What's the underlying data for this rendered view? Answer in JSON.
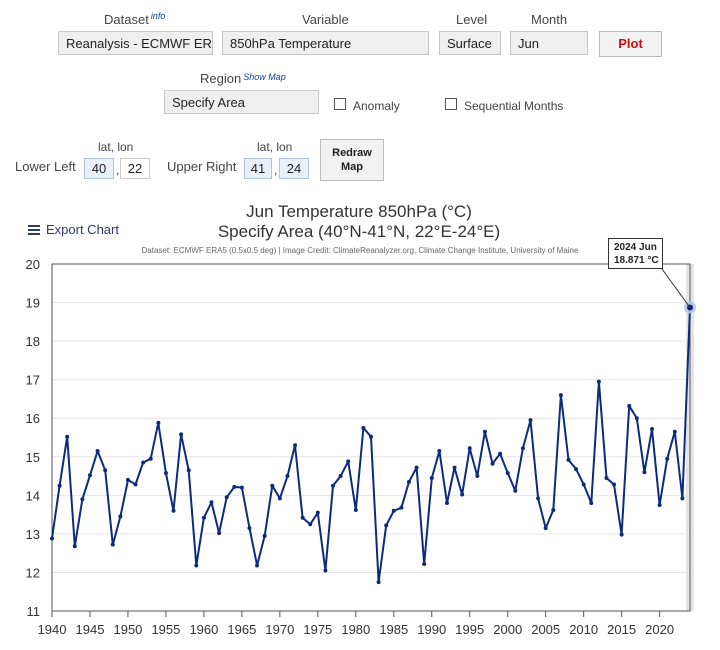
{
  "controls": {
    "dataset_label": "Dataset",
    "dataset_info": "info",
    "dataset_value": "Reanalysis - ECMWF ER",
    "variable_label": "Variable",
    "variable_value": "850hPa Temperature",
    "level_label": "Level",
    "level_value": "Surface",
    "month_label": "Month",
    "month_value": "Jun",
    "plot_button": "Plot",
    "region_label": "Region",
    "region_showmap": "Show Map",
    "region_value": "Specify Area",
    "anomaly_label": "Anomaly",
    "sequential_label": "Sequential Months",
    "latlon_label_1": "lat, lon",
    "latlon_label_2": "lat, lon",
    "lower_left_label": "Lower Left",
    "lower_left_lat": "40",
    "lower_left_lon": "22",
    "upper_right_label": "Upper Right",
    "upper_right_lat": "41",
    "upper_right_lon": "24",
    "comma": ",",
    "redraw_line1": "Redraw",
    "redraw_line2": "Map"
  },
  "export_chart": "Export Chart",
  "tooltip": {
    "line1": "2024 Jun",
    "line2": "18.871 °C"
  },
  "colors": {
    "line": "#0d2b7e",
    "plot_red": "#cc1111",
    "highlight": "#b8c7e6"
  },
  "chart_data": {
    "type": "line",
    "title": "Jun Temperature 850hPa (°C)",
    "subtitle": "Specify Area (40°N-41°N, 22°E-24°E)",
    "credit": "Dataset: ECMWF ERA5 (0.5x0.5 deg) | Image Credit: ClimateReanalyzer.org, Climate Change Institute, University of Maine",
    "xlabel": "",
    "ylabel": "",
    "xlim": [
      1940,
      2024
    ],
    "ylim": [
      11,
      20
    ],
    "x_ticks": [
      1940,
      1945,
      1950,
      1955,
      1960,
      1965,
      1970,
      1975,
      1980,
      1985,
      1990,
      1995,
      2000,
      2005,
      2010,
      2015,
      2020
    ],
    "y_ticks": [
      11,
      12,
      13,
      14,
      15,
      16,
      17,
      18,
      19,
      20
    ],
    "grid": true,
    "highlight_x": 2024,
    "series": [
      {
        "name": "Jun 850hPa Temperature",
        "x": [
          1940,
          1941,
          1942,
          1943,
          1944,
          1945,
          1946,
          1947,
          1948,
          1949,
          1950,
          1951,
          1952,
          1953,
          1954,
          1955,
          1956,
          1957,
          1958,
          1959,
          1960,
          1961,
          1962,
          1963,
          1964,
          1965,
          1966,
          1967,
          1968,
          1969,
          1970,
          1971,
          1972,
          1973,
          1974,
          1975,
          1976,
          1977,
          1978,
          1979,
          1980,
          1981,
          1982,
          1983,
          1984,
          1985,
          1986,
          1987,
          1988,
          1989,
          1990,
          1991,
          1992,
          1993,
          1994,
          1995,
          1996,
          1997,
          1998,
          1999,
          2000,
          2001,
          2002,
          2003,
          2004,
          2005,
          2006,
          2007,
          2008,
          2009,
          2010,
          2011,
          2012,
          2013,
          2014,
          2015,
          2016,
          2017,
          2018,
          2019,
          2020,
          2021,
          2022,
          2023,
          2024
        ],
        "values": [
          12.88,
          14.25,
          15.52,
          12.68,
          13.9,
          14.52,
          15.15,
          14.65,
          12.72,
          13.45,
          14.4,
          14.28,
          14.85,
          14.95,
          15.88,
          14.58,
          13.6,
          15.58,
          14.65,
          12.18,
          13.42,
          13.82,
          13.02,
          13.95,
          14.22,
          14.2,
          13.15,
          12.18,
          12.95,
          14.25,
          13.92,
          14.5,
          15.3,
          13.42,
          13.25,
          13.55,
          12.05,
          14.25,
          14.5,
          14.88,
          13.62,
          15.75,
          15.52,
          11.75,
          13.22,
          13.6,
          13.68,
          14.35,
          14.72,
          12.22,
          14.45,
          15.15,
          13.8,
          14.72,
          14.02,
          15.22,
          14.5,
          15.65,
          14.82,
          15.08,
          14.58,
          14.12,
          15.22,
          15.95,
          13.92,
          13.15,
          13.62,
          16.6,
          14.92,
          14.68,
          14.28,
          13.8,
          16.95,
          14.45,
          14.28,
          12.98,
          16.32,
          16.0,
          14.6,
          15.72,
          13.75,
          14.95,
          15.65,
          13.92,
          18.871
        ]
      }
    ]
  }
}
